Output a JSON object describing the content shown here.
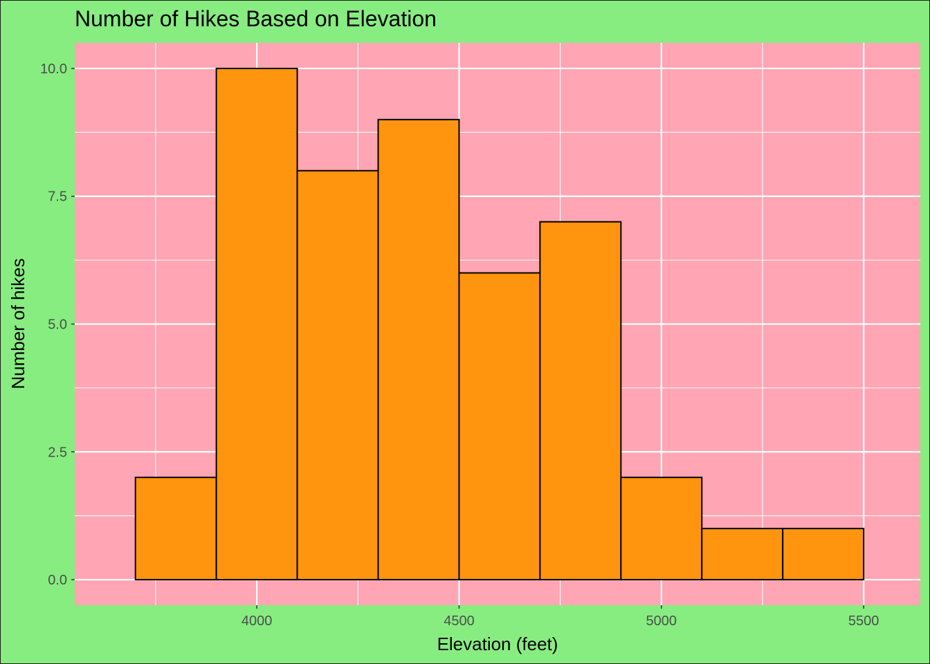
{
  "chart_data": {
    "type": "bar",
    "title": "Number of Hikes Based on Elevation",
    "xlabel": "Elevation (feet)",
    "ylabel": "Number of hikes",
    "bins": [
      {
        "x0": 3700,
        "x1": 3900,
        "count": 2
      },
      {
        "x0": 3900,
        "x1": 4100,
        "count": 10
      },
      {
        "x0": 4100,
        "x1": 4300,
        "count": 8
      },
      {
        "x0": 4300,
        "x1": 4500,
        "count": 9
      },
      {
        "x0": 4500,
        "x1": 4700,
        "count": 6
      },
      {
        "x0": 4700,
        "x1": 4900,
        "count": 7
      },
      {
        "x0": 4900,
        "x1": 5100,
        "count": 2
      },
      {
        "x0": 5100,
        "x1": 5300,
        "count": 1
      },
      {
        "x0": 5300,
        "x1": 5500,
        "count": 1
      }
    ],
    "xlim": [
      3550,
      5640
    ],
    "ylim": [
      -0.5,
      10.5
    ],
    "x_ticks": [
      4000,
      4500,
      5000,
      5500
    ],
    "x_tick_labels": [
      "4000",
      "4500",
      "5000",
      "5500"
    ],
    "y_ticks": [
      0,
      2.5,
      5,
      7.5,
      10
    ],
    "y_tick_labels": [
      "0.0",
      "2.5",
      "5.0",
      "7.5",
      "10.0"
    ],
    "grid": true,
    "colors": {
      "plot_background": "#ffa5b4",
      "panel_background": "#87ed80",
      "panel_border": "#1a1a1a",
      "bar_fill": "#ff950e",
      "bar_stroke": "#000000",
      "grid": "#ffffff",
      "tick_text": "#4d4d4d"
    }
  }
}
